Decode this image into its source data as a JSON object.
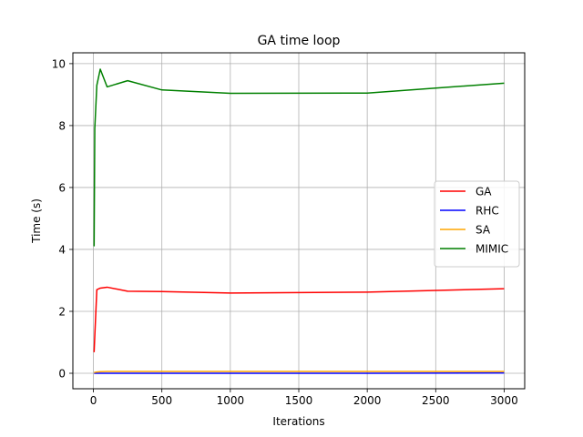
{
  "chart_data": {
    "type": "line",
    "title": "GA time loop",
    "xlabel": "Iterations",
    "ylabel": "Time (s)",
    "xlim": [
      -150,
      3150
    ],
    "ylim": [
      -0.5,
      10.35
    ],
    "xticks": [
      0,
      500,
      1000,
      1500,
      2000,
      2500,
      3000
    ],
    "yticks": [
      0,
      2,
      4,
      6,
      8,
      10
    ],
    "grid": true,
    "legend_position": "center-right",
    "series": [
      {
        "name": "GA",
        "color": "#ff0000",
        "x": [
          5,
          10,
          25,
          50,
          100,
          250,
          500,
          1000,
          2000,
          3000
        ],
        "y": [
          0.68,
          1.2,
          2.7,
          2.75,
          2.78,
          2.65,
          2.64,
          2.59,
          2.62,
          2.73
        ]
      },
      {
        "name": "RHC",
        "color": "#0000ff",
        "x": [
          5,
          10,
          25,
          50,
          100,
          250,
          500,
          1000,
          2000,
          3000
        ],
        "y": [
          0.0,
          0.0,
          0.0,
          0.0,
          0.0,
          0.0,
          0.0,
          0.0,
          0.0,
          0.01
        ]
      },
      {
        "name": "SA",
        "color": "#ffa500",
        "x": [
          5,
          10,
          25,
          50,
          100,
          250,
          500,
          1000,
          2000,
          3000
        ],
        "y": [
          0.02,
          0.03,
          0.04,
          0.05,
          0.06,
          0.06,
          0.06,
          0.06,
          0.06,
          0.06
        ]
      },
      {
        "name": "MIMIC",
        "color": "#008000",
        "x": [
          5,
          10,
          25,
          50,
          100,
          250,
          500,
          1000,
          2000,
          3000
        ],
        "y": [
          4.1,
          7.9,
          9.3,
          9.82,
          9.25,
          9.45,
          9.15,
          9.04,
          9.05,
          9.37
        ]
      }
    ]
  }
}
